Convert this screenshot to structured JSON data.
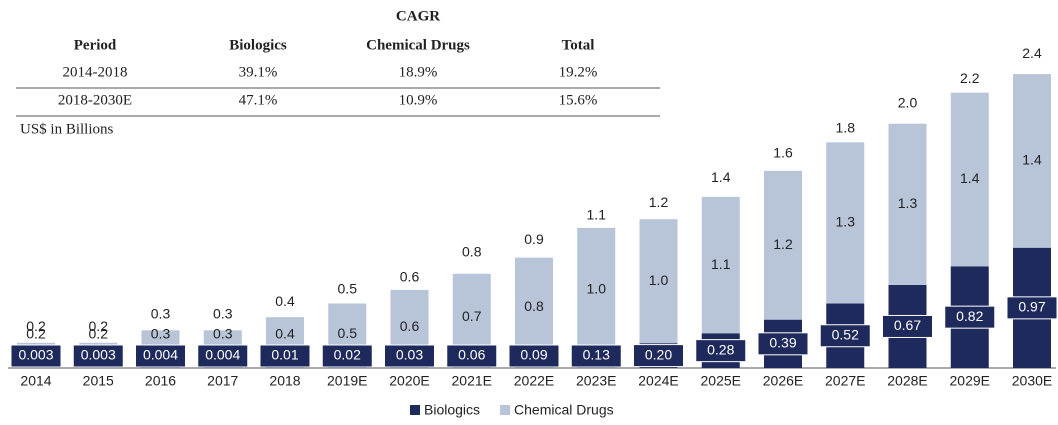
{
  "table": {
    "group_header": "CAGR",
    "columns": [
      "Period",
      "Biologics",
      "Chemical Drugs",
      "Total"
    ],
    "rows": [
      [
        "2014-2018",
        "39.1%",
        "18.9%",
        "19.2%"
      ],
      [
        "2018-2030E",
        "47.1%",
        "10.9%",
        "15.6%"
      ]
    ]
  },
  "note": "US$ in Billions",
  "chart_data": {
    "type": "stacked_bar",
    "categories": [
      "2014",
      "2015",
      "2016",
      "2017",
      "2018",
      "2019E",
      "2020E",
      "2021E",
      "2022E",
      "2023E",
      "2024E",
      "2025E",
      "2026E",
      "2027E",
      "2028E",
      "2029E",
      "2030E"
    ],
    "series": [
      {
        "name": "Biologics",
        "color": "#1f2a5c",
        "values": [
          0.003,
          0.003,
          0.004,
          0.004,
          0.01,
          0.02,
          0.03,
          0.06,
          0.09,
          0.13,
          0.2,
          0.28,
          0.39,
          0.52,
          0.67,
          0.82,
          0.97
        ],
        "value_labels": [
          "0.003",
          "0.003",
          "0.004",
          "0.004",
          "0.01",
          "0.02",
          "0.03",
          "0.06",
          "0.09",
          "0.13",
          "0.20",
          "0.28",
          "0.39",
          "0.52",
          "0.67",
          "0.82",
          "0.97"
        ]
      },
      {
        "name": "Chemical Drugs",
        "color": "#b8c4d8",
        "values": [
          0.2,
          0.2,
          0.3,
          0.3,
          0.4,
          0.5,
          0.6,
          0.7,
          0.8,
          1.0,
          1.0,
          1.1,
          1.2,
          1.3,
          1.3,
          1.4,
          1.4
        ],
        "value_labels": [
          "0.2",
          "0.2",
          "0.3",
          "0.3",
          "0.4",
          "0.5",
          "0.6",
          "0.7",
          "0.8",
          "1.0",
          "1.0",
          "1.1",
          "1.2",
          "1.3",
          "1.3",
          "1.4",
          "1.4"
        ]
      }
    ],
    "totals": [
      0.2,
      0.2,
      0.3,
      0.3,
      0.4,
      0.5,
      0.6,
      0.8,
      0.9,
      1.1,
      1.2,
      1.4,
      1.6,
      1.8,
      2.0,
      2.2,
      2.4
    ],
    "totals_labels": [
      "0.2",
      "0.2",
      "0.3",
      "0.3",
      "0.4",
      "0.5",
      "0.6",
      "0.8",
      "0.9",
      "1.1",
      "1.2",
      "1.4",
      "1.6",
      "1.8",
      "2.0",
      "2.2",
      "2.4"
    ],
    "legend": "bottom"
  }
}
